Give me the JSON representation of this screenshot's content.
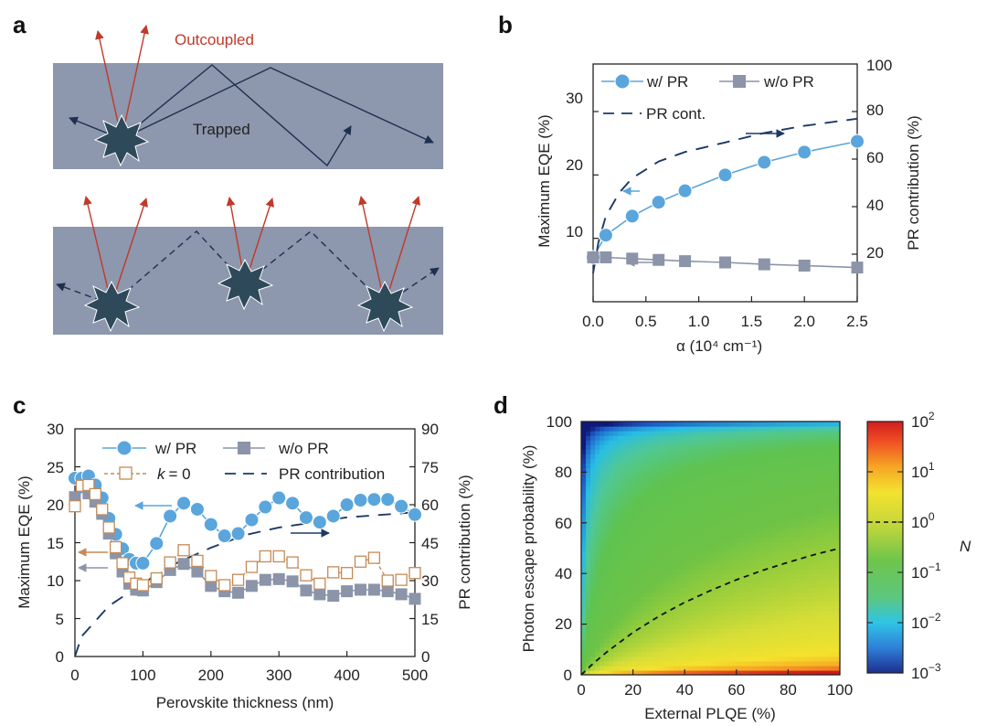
{
  "panel_labels": {
    "a": "a",
    "b": "b",
    "c": "c",
    "d": "d"
  },
  "colors": {
    "slab": "#8d97ad",
    "emitter": "#2e4a5a",
    "ray_out": "#c0392b",
    "ray_trap": "#1f2f50",
    "wpr": "#5aa5dc",
    "wopr": "#8b94a8",
    "k0": "#c58a56",
    "prc": "#1d3a66"
  },
  "panel_a": {
    "outcoupled_label": "Outcoupled",
    "trapped_label": "Trapped"
  },
  "chart_data": [
    {
      "panel": "b",
      "type": "line",
      "xlabel": "α (10⁴ cm⁻¹)",
      "ylabel_left": "Maximum EQE (%)",
      "ylabel_right": "PR contribution (%)",
      "xlim": [
        0,
        2.5
      ],
      "ylim_left": [
        0,
        37.5
      ],
      "ylim_right": [
        0,
        100
      ],
      "xticks": [
        "0.0",
        "0.5",
        "1.0",
        "1.5",
        "2.0",
        "2.5"
      ],
      "yticks_left": [
        "10",
        "20",
        "30"
      ],
      "yticks_right": [
        "20",
        "40",
        "60",
        "80",
        "100"
      ],
      "legend": [
        "w/ PR",
        "w/o PR",
        "PR cont."
      ],
      "series": [
        {
          "name": "w/ PR",
          "axis": "left",
          "marker": "circle",
          "x": [
            0.0,
            0.12,
            0.37,
            0.62,
            0.87,
            1.25,
            1.62,
            2.0,
            2.5
          ],
          "y": [
            7.0,
            10.5,
            13.5,
            15.7,
            17.5,
            20.0,
            22.0,
            23.6,
            25.3
          ]
        },
        {
          "name": "w/o PR",
          "axis": "left",
          "marker": "square",
          "x": [
            0.0,
            0.12,
            0.37,
            0.62,
            0.87,
            1.25,
            1.62,
            2.0,
            2.5
          ],
          "y": [
            7.0,
            7.0,
            6.8,
            6.6,
            6.4,
            6.2,
            5.9,
            5.7,
            5.4
          ]
        },
        {
          "name": "PR cont.",
          "axis": "right",
          "style": "dashed",
          "x": [
            0.0,
            0.05,
            0.12,
            0.25,
            0.37,
            0.62,
            0.87,
            1.25,
            1.62,
            2.0,
            2.5
          ],
          "y": [
            12,
            25,
            36,
            46,
            52,
            59,
            63,
            67,
            71,
            74,
            77
          ]
        }
      ]
    },
    {
      "panel": "c",
      "type": "line",
      "xlabel": "Perovskite thickness (nm)",
      "ylabel_left": "Maximum EQE (%)",
      "ylabel_right": "PR contribution (%)",
      "xlim": [
        0,
        500
      ],
      "ylim_left": [
        0,
        30
      ],
      "ylim_right": [
        0,
        90
      ],
      "xticks": [
        "0",
        "100",
        "200",
        "300",
        "400",
        "500"
      ],
      "yticks_left": [
        "0",
        "5",
        "10",
        "15",
        "20",
        "25",
        "30"
      ],
      "yticks_right": [
        "0",
        "15",
        "30",
        "45",
        "60",
        "75",
        "90"
      ],
      "legend": [
        "w/ PR",
        "w/o PR",
        "= 0",
        "PR contribution"
      ],
      "legend_k_symbol": "k",
      "series": [
        {
          "name": "w/ PR",
          "axis": "left",
          "marker": "circle",
          "x": [
            0,
            10,
            20,
            30,
            40,
            50,
            60,
            70,
            80,
            90,
            100,
            120,
            140,
            160,
            180,
            200,
            220,
            240,
            260,
            280,
            300,
            320,
            340,
            360,
            380,
            400,
            420,
            440,
            460,
            480,
            500
          ],
          "y": [
            23.5,
            23.5,
            23.8,
            22.6,
            20.9,
            18.2,
            16.1,
            14.2,
            12.8,
            12.3,
            12.3,
            14.9,
            18.5,
            20.2,
            19.4,
            17.4,
            15.9,
            16.2,
            18.0,
            19.7,
            20.9,
            20.2,
            18.3,
            17.7,
            18.5,
            20.0,
            20.6,
            20.7,
            20.7,
            19.8,
            18.7
          ]
        },
        {
          "name": "w/o PR",
          "axis": "left",
          "marker": "square",
          "x": [
            0,
            10,
            20,
            30,
            40,
            50,
            60,
            70,
            80,
            90,
            100,
            120,
            140,
            160,
            180,
            200,
            220,
            240,
            260,
            280,
            300,
            320,
            340,
            360,
            380,
            400,
            420,
            440,
            460,
            480,
            500
          ],
          "y": [
            21.0,
            22.3,
            21.5,
            20.4,
            18.8,
            16.2,
            13.6,
            11.2,
            9.6,
            8.8,
            8.7,
            9.8,
            11.4,
            12.2,
            11.2,
            9.3,
            8.6,
            8.4,
            9.3,
            10.1,
            10.2,
            9.9,
            8.7,
            8.2,
            8.0,
            8.6,
            8.8,
            8.8,
            8.6,
            8.2,
            7.6
          ]
        },
        {
          "name": "k = 0",
          "axis": "left",
          "marker": "open-square",
          "style": "dashed",
          "x": [
            0,
            10,
            20,
            30,
            40,
            50,
            60,
            70,
            80,
            90,
            100,
            120,
            140,
            160,
            180,
            200,
            220,
            240,
            260,
            280,
            300,
            320,
            340,
            360,
            380,
            400,
            420,
            440,
            460,
            480,
            500
          ],
          "y": [
            19.8,
            22.5,
            22.6,
            21.4,
            19.4,
            17.0,
            14.4,
            12.3,
            10.4,
            9.6,
            9.4,
            10.3,
            12.4,
            14.0,
            12.6,
            10.6,
            9.4,
            10.1,
            11.8,
            13.2,
            13.2,
            12.4,
            10.7,
            9.6,
            11.1,
            11.0,
            12.5,
            13.0,
            10.0,
            10.1,
            11.0
          ]
        },
        {
          "name": "PR contribution",
          "axis": "right",
          "style": "dashed",
          "x": [
            0,
            10,
            50,
            100,
            150,
            200,
            250,
            300,
            350,
            400,
            450,
            500
          ],
          "y": [
            0,
            8,
            20,
            29,
            37,
            43,
            48,
            51,
            53,
            55,
            56,
            57
          ]
        }
      ]
    },
    {
      "panel": "d",
      "type": "heatmap",
      "xlabel": "External PLQE (%)",
      "ylabel": "Photon escape probability (%)",
      "xlim": [
        0,
        100
      ],
      "ylim": [
        0,
        100
      ],
      "xticks": [
        "0",
        "20",
        "40",
        "60",
        "80",
        "100"
      ],
      "yticks": [
        "0",
        "20",
        "40",
        "60",
        "80",
        "100"
      ],
      "colorbar": {
        "label": "N",
        "scale": "log",
        "range": [
          -3,
          2
        ],
        "tick_base": "10",
        "tick_exponents": [
          "2",
          "1",
          "0",
          "−1",
          "−2",
          "−3"
        ],
        "dashed_at": 0
      },
      "contour_N_equals_1": {
        "x": [
          0,
          5,
          10,
          20,
          30,
          40,
          50,
          60,
          70,
          80,
          90,
          100
        ],
        "y": [
          0,
          4.8,
          9.1,
          16.7,
          23.1,
          28.6,
          33.3,
          37.5,
          41.2,
          44.4,
          47.4,
          50.0
        ]
      }
    }
  ]
}
